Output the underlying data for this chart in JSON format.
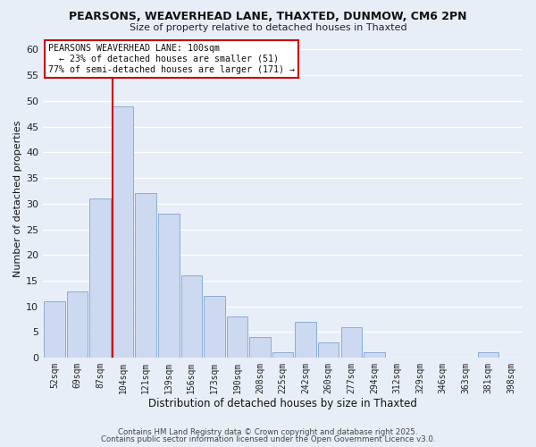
{
  "title1": "PEARSONS, WEAVERHEAD LANE, THAXTED, DUNMOW, CM6 2PN",
  "title2": "Size of property relative to detached houses in Thaxted",
  "xlabel": "Distribution of detached houses by size in Thaxted",
  "ylabel": "Number of detached properties",
  "bar_labels": [
    "52sqm",
    "69sqm",
    "87sqm",
    "104sqm",
    "121sqm",
    "139sqm",
    "156sqm",
    "173sqm",
    "190sqm",
    "208sqm",
    "225sqm",
    "242sqm",
    "260sqm",
    "277sqm",
    "294sqm",
    "312sqm",
    "329sqm",
    "346sqm",
    "363sqm",
    "381sqm",
    "398sqm"
  ],
  "bar_values": [
    11,
    13,
    31,
    49,
    32,
    28,
    16,
    12,
    8,
    4,
    1,
    7,
    3,
    6,
    1,
    0,
    0,
    0,
    0,
    1,
    0
  ],
  "bar_color": "#ccd9f0",
  "bar_edge_color": "#8aadd4",
  "vline_index": 3,
  "vline_color": "#cc0000",
  "ylim": [
    0,
    62
  ],
  "yticks": [
    0,
    5,
    10,
    15,
    20,
    25,
    30,
    35,
    40,
    45,
    50,
    55,
    60
  ],
  "annotation_title": "PEARSONS WEAVERHEAD LANE: 100sqm",
  "annotation_line1": "← 23% of detached houses are smaller (51)",
  "annotation_line2": "77% of semi-detached houses are larger (171) →",
  "annotation_box_color": "#ffffff",
  "annotation_box_edge": "#cc0000",
  "footer1": "Contains HM Land Registry data © Crown copyright and database right 2025.",
  "footer2": "Contains public sector information licensed under the Open Government Licence v3.0.",
  "background_color": "#e8eef8",
  "grid_color": "#ffffff"
}
